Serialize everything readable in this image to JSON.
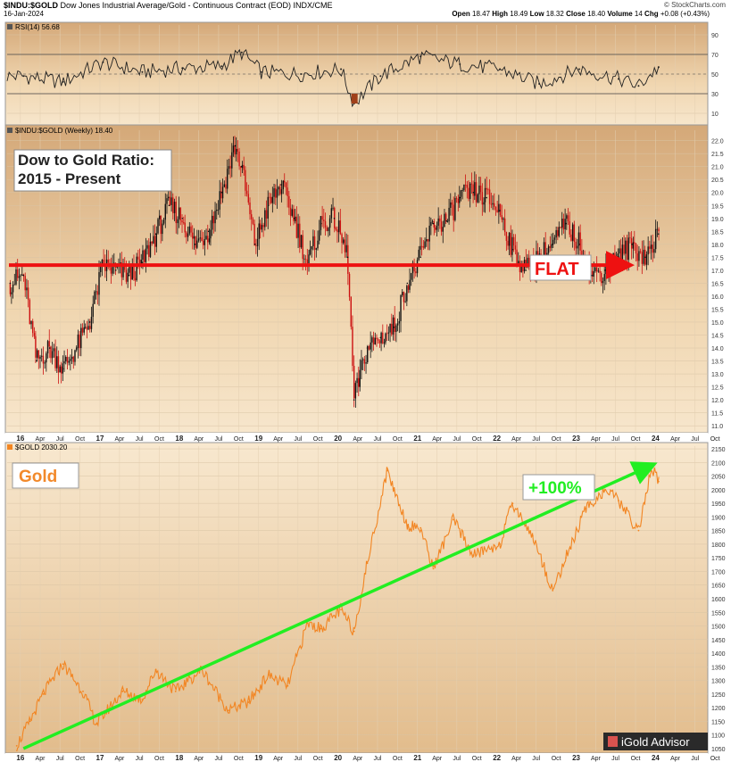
{
  "header": {
    "symbol": "$INDU:$GOLD",
    "description": "Dow Jones Industrial Average/Gold - Continuous Contract (EOD)",
    "exchange": "INDX/CME",
    "date": "16-Jan-2024",
    "source": "© StockCharts.com",
    "ohlc": {
      "open_label": "Open",
      "open": "18.47",
      "high_label": "High",
      "high": "18.49",
      "low_label": "Low",
      "low": "18.32",
      "close_label": "Close",
      "close": "18.40",
      "volume_label": "Volume",
      "volume": "14",
      "chg_label": "Chg",
      "chg": "+0.08 (+0.43%)"
    }
  },
  "panels": {
    "rsi_label": "RSI(14) 56.68",
    "ratio_label": "$INDU:$GOLD (Weekly) 18.40",
    "gold_label": "$GOLD 2030.20"
  },
  "annotations": {
    "ratio_title_line1": "Dow to Gold Ratio:",
    "ratio_title_line2": "2015 - Present",
    "flat_label": "FLAT",
    "gold_title": "Gold",
    "gold_change": "+100%",
    "watermark": "iGold Advisor"
  },
  "colors": {
    "panel_bg_light": "#f2dcbc",
    "panel_bg_dark": "#d4a878",
    "flat_line": "#ee1111",
    "trend_line": "#22ee22",
    "gold_line": "#f28522",
    "gold_text": "#f2892a",
    "candle_up": "#111111",
    "candle_down": "#cc1111"
  },
  "chart_data": [
    {
      "type": "line",
      "title": "RSI(14)",
      "x": [
        "2016-01",
        "2016-07",
        "2017-01",
        "2017-07",
        "2018-01",
        "2018-07",
        "2018-10",
        "2019-01",
        "2019-07",
        "2020-01",
        "2020-03",
        "2020-07",
        "2021-01",
        "2021-07",
        "2022-01",
        "2022-07",
        "2023-01",
        "2023-07",
        "2023-10",
        "2024-01"
      ],
      "values": [
        48,
        42,
        62,
        52,
        56,
        58,
        72,
        52,
        50,
        55,
        20,
        48,
        68,
        60,
        55,
        40,
        55,
        45,
        38,
        57
      ],
      "ylim": [
        0,
        100
      ],
      "yticks": [
        10,
        30,
        50,
        70,
        90
      ],
      "reference_lines": [
        30,
        70
      ]
    },
    {
      "type": "candlestick",
      "title": "$INDU:$GOLD (Weekly)",
      "x": [
        "2015-11",
        "2016-01",
        "2016-03",
        "2016-05",
        "2016-07",
        "2016-09",
        "2016-11",
        "2017-01",
        "2017-03",
        "2017-05",
        "2017-07",
        "2017-09",
        "2017-11",
        "2018-01",
        "2018-03",
        "2018-05",
        "2018-07",
        "2018-09",
        "2018-10",
        "2018-12",
        "2019-02",
        "2019-04",
        "2019-06",
        "2019-08",
        "2019-10",
        "2019-12",
        "2020-02",
        "2020-03",
        "2020-05",
        "2020-07",
        "2020-09",
        "2020-11",
        "2021-01",
        "2021-03",
        "2021-05",
        "2021-07",
        "2021-09",
        "2021-11",
        "2022-01",
        "2022-03",
        "2022-05",
        "2022-07",
        "2022-09",
        "2022-11",
        "2023-01",
        "2023-03",
        "2023-05",
        "2023-07",
        "2023-09",
        "2023-11",
        "2024-01"
      ],
      "values": [
        16.5,
        16.8,
        13.5,
        14.0,
        13.2,
        14.0,
        15.0,
        17.2,
        17.0,
        16.8,
        17.3,
        18.4,
        19.5,
        19.0,
        18.0,
        18.5,
        20.0,
        21.8,
        21.0,
        18.0,
        19.5,
        20.3,
        19.0,
        17.2,
        18.8,
        19.0,
        17.5,
        12.0,
        14.0,
        14.4,
        14.8,
        16.5,
        17.5,
        18.8,
        18.9,
        19.8,
        20.0,
        19.8,
        19.3,
        17.8,
        17.0,
        17.5,
        18.0,
        18.8,
        18.0,
        16.8,
        17.0,
        17.5,
        18.0,
        17.5,
        18.4
      ],
      "ylim": [
        10.8,
        22.4
      ],
      "yticks": [
        11.0,
        11.5,
        12.0,
        12.5,
        13.0,
        13.5,
        14.0,
        14.5,
        15.0,
        15.5,
        16.0,
        16.5,
        17.0,
        17.5,
        18.0,
        18.5,
        19.0,
        19.5,
        20.0,
        20.5,
        21.0,
        21.5,
        22.0
      ],
      "flat_line_value": 17.2
    },
    {
      "type": "line",
      "title": "$GOLD",
      "x": [
        "2015-12",
        "2016-02",
        "2016-04",
        "2016-07",
        "2016-10",
        "2016-12",
        "2017-04",
        "2017-07",
        "2017-09",
        "2017-12",
        "2018-04",
        "2018-08",
        "2018-11",
        "2019-02",
        "2019-05",
        "2019-08",
        "2019-10",
        "2020-01",
        "2020-03",
        "2020-05",
        "2020-08",
        "2020-11",
        "2021-01",
        "2021-03",
        "2021-06",
        "2021-09",
        "2022-01",
        "2022-03",
        "2022-06",
        "2022-09",
        "2022-11",
        "2023-02",
        "2023-05",
        "2023-07",
        "2023-10",
        "2023-12",
        "2024-01"
      ],
      "values": [
        1060,
        1150,
        1250,
        1360,
        1260,
        1140,
        1260,
        1230,
        1340,
        1260,
        1340,
        1190,
        1220,
        1320,
        1280,
        1510,
        1490,
        1560,
        1480,
        1730,
        2070,
        1870,
        1860,
        1710,
        1890,
        1760,
        1800,
        1950,
        1830,
        1630,
        1750,
        1930,
        2000,
        1960,
        1850,
        2080,
        2030
      ],
      "ylim": [
        1040,
        2160
      ],
      "yticks": [
        1050,
        1100,
        1150,
        1200,
        1250,
        1300,
        1350,
        1400,
        1450,
        1500,
        1550,
        1600,
        1650,
        1700,
        1750,
        1800,
        1850,
        1900,
        1950,
        2000,
        2050,
        2100,
        2150
      ],
      "trend_start": {
        "x": "2016-01",
        "y": 1050
      },
      "trend_end": {
        "x": "2023-12",
        "y": 2090
      }
    }
  ],
  "x_axis_labels": [
    "16",
    "Apr",
    "Jul",
    "Oct",
    "17",
    "Apr",
    "Jul",
    "Oct",
    "18",
    "Apr",
    "Jul",
    "Oct",
    "19",
    "Apr",
    "Jul",
    "Oct",
    "20",
    "Apr",
    "Jul",
    "Oct",
    "21",
    "Apr",
    "Jul",
    "Oct",
    "22",
    "Apr",
    "Jul",
    "Oct",
    "23",
    "Apr",
    "Jul",
    "Oct",
    "24",
    "Apr",
    "Jul",
    "Oct"
  ]
}
